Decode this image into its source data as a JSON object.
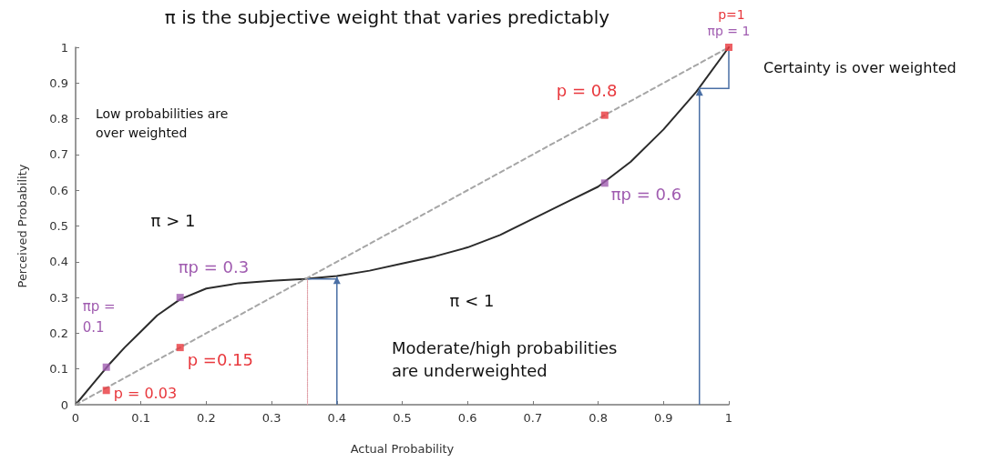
{
  "chart_data": {
    "type": "line",
    "title": "π is the subjective weight that varies predictably",
    "xlabel": "Actual Probability",
    "ylabel": "Perceived Probability",
    "xlim": [
      0,
      1
    ],
    "ylim": [
      0,
      1
    ],
    "xticks": [
      0,
      0.1,
      0.2,
      0.3,
      0.4,
      0.5,
      0.6,
      0.7,
      0.8,
      0.9,
      1
    ],
    "yticks": [
      0,
      0.1,
      0.2,
      0.3,
      0.4,
      0.5,
      0.6,
      0.7,
      0.8,
      0.9,
      1
    ],
    "grid": false,
    "series": [
      {
        "color": "#2b2b2b",
        "line_style": "solid",
        "marker": "none",
        "x": [
          0,
          0.025,
          0.05,
          0.075,
          0.1,
          0.125,
          0.16,
          0.2,
          0.25,
          0.3,
          0.35,
          0.4,
          0.45,
          0.5,
          0.55,
          0.6,
          0.65,
          0.7,
          0.75,
          0.8,
          0.85,
          0.9,
          0.95,
          1
        ],
        "values": [
          0,
          0.055,
          0.11,
          0.16,
          0.205,
          0.25,
          0.295,
          0.325,
          0.34,
          0.347,
          0.352,
          0.36,
          0.375,
          0.395,
          0.415,
          0.44,
          0.475,
          0.52,
          0.565,
          0.61,
          0.68,
          0.77,
          0.875,
          1.0
        ]
      },
      {
        "color": "#a6a6a6",
        "line_style": "dashed",
        "marker": "none",
        "x": [
          0,
          1
        ],
        "values": [
          0,
          1
        ]
      },
      {
        "color": "#e0a0a8",
        "line_style": "dotted",
        "marker": "none",
        "x": [
          0.355,
          0.355
        ],
        "values": [
          0,
          0.352
        ]
      },
      {
        "type": "scatter",
        "color": "#e8383d",
        "marker": "square",
        "x": [
          0.047,
          0.16,
          0.81,
          1
        ],
        "values": [
          0.04,
          0.16,
          0.81,
          1
        ]
      },
      {
        "type": "scatter",
        "color": "#a05cb0",
        "marker": "square",
        "x": [
          0.047,
          0.16,
          0.81
        ],
        "values": [
          0.105,
          0.3,
          0.62
        ]
      }
    ],
    "annotations": [
      {
        "text": "p = 0.03",
        "x": 0.047,
        "y": 0.04
      },
      {
        "text": "πp = 0.1",
        "x": 0.047,
        "y": 0.105
      },
      {
        "text": "p =0.15",
        "x": 0.16,
        "y": 0.16
      },
      {
        "text": "πp = 0.3",
        "x": 0.16,
        "y": 0.3
      },
      {
        "text": "p = 0.8",
        "x": 0.81,
        "y": 0.81
      },
      {
        "text": "πp = 0.6",
        "x": 0.81,
        "y": 0.62
      },
      {
        "text": "p=1",
        "x": 1,
        "y": 1
      },
      {
        "text": "πp = 1",
        "x": 1,
        "y": 1
      },
      "Low probabilities are over weighted",
      "π > 1",
      "π < 1",
      "Moderate/high probabilities are underweighted",
      "Certainty is over weighted"
    ]
  }
}
